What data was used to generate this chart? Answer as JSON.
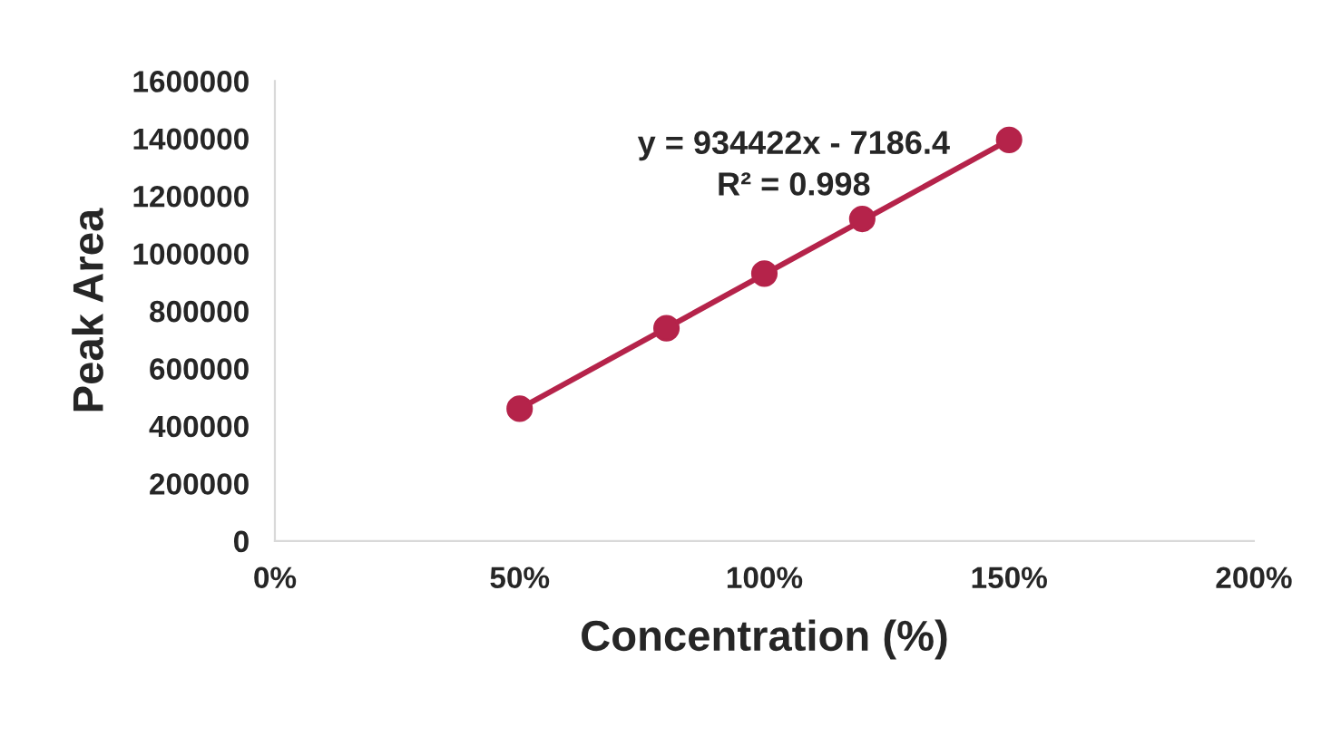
{
  "chart_data": {
    "type": "scatter",
    "xlabel": "Concentration (%)",
    "ylabel": "Peak Area",
    "x": [
      50,
      80,
      100,
      120,
      150
    ],
    "series": [
      {
        "color": "#b5234a",
        "values": [
          460000,
          740000,
          930000,
          1120000,
          1395000
        ],
        "marker": "circle"
      },
      {
        "type": "line",
        "color": "#b5234a",
        "x": [
          50,
          150
        ],
        "values": [
          460000,
          1395000
        ],
        "line_style": "solid"
      }
    ],
    "annotations": [
      "y = 934422x - 7186.4",
      "R² = 0.998"
    ],
    "xlim": [
      0,
      200
    ],
    "xticks": [
      {
        "value": 0,
        "label": "0%"
      },
      {
        "value": 50,
        "label": "50%"
      },
      {
        "value": 100,
        "label": "100%"
      },
      {
        "value": 150,
        "label": "150%"
      },
      {
        "value": 200,
        "label": "200%"
      }
    ],
    "ylim": [
      0,
      1600000
    ],
    "yticks": [
      0,
      200000,
      400000,
      600000,
      800000,
      1000000,
      1200000,
      1400000,
      1600000
    ],
    "grid": false,
    "legend": false
  }
}
